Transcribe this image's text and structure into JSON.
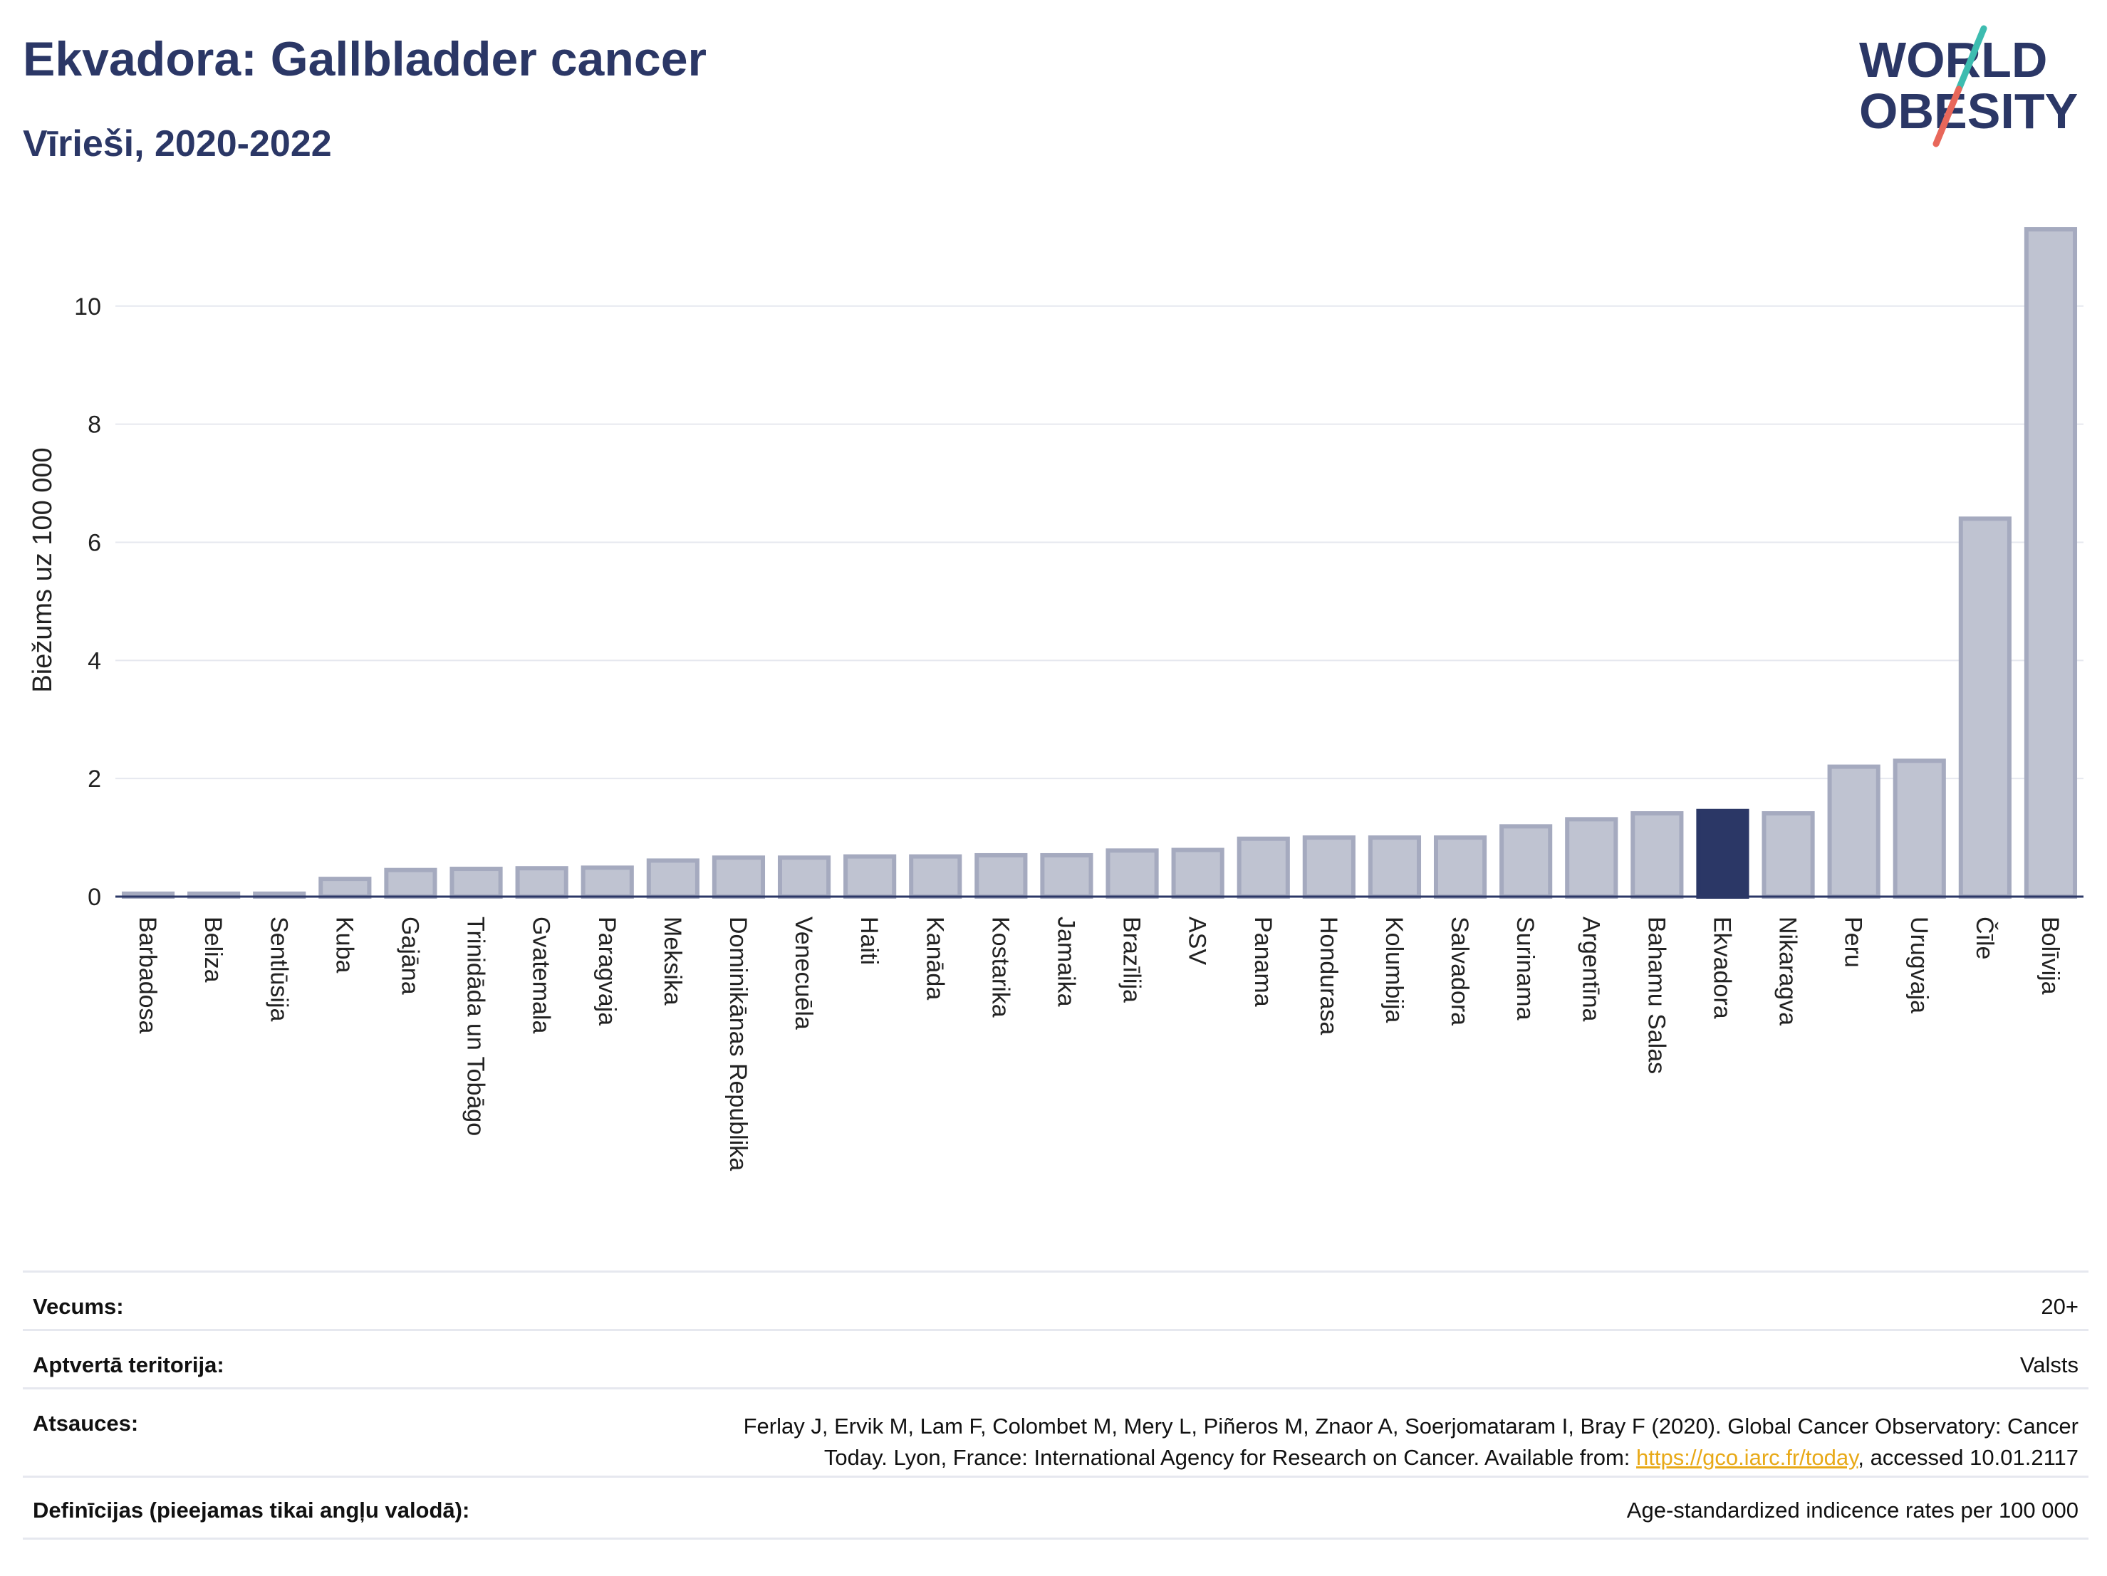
{
  "header": {
    "title": "Ekvadora: Gallbladder cancer",
    "subtitle": "Vīrieši, 2020-2022"
  },
  "logo": {
    "line1": "WORLD",
    "line2": "OBESITY",
    "icon": "world-obesity-logo-icon",
    "colors": {
      "text": "#2b3766",
      "slash_top": "#3dbcb0",
      "slash_bottom": "#e8675a"
    }
  },
  "chart_data": {
    "type": "bar",
    "ylabel": "Biežums uz 100 000",
    "xlabel": "",
    "ylim": [
      0,
      11.3
    ],
    "yticks": [
      0,
      2,
      4,
      6,
      8,
      10
    ],
    "grid": true,
    "highlight": "Ekvadora",
    "colors": {
      "bar": "#bfc3d1",
      "bar_edge": "#a5aabf",
      "highlight": "#2b3766",
      "axis": "#2b3766",
      "grid": "#e6e8ef"
    },
    "categories": [
      "Barbadosa",
      "Beliza",
      "Sentlūsija",
      "Kuba",
      "Gajāna",
      "Trinidāda un Tobāgo",
      "Gvatemala",
      "Paragvaja",
      "Meksika",
      "Dominikānas Republika",
      "Venecuēla",
      "Haiti",
      "Kanāda",
      "Kostarika",
      "Jamaika",
      "Brazīlija",
      "ASV",
      "Panama",
      "Hondurasa",
      "Kolumbija",
      "Salvadora",
      "Surinama",
      "Argentīna",
      "Bahamu Salas",
      "Ekvadora",
      "Nikaragva",
      "Peru",
      "Urugvaja",
      "Čīle",
      "Bolīvija"
    ],
    "values": [
      0.05,
      0.05,
      0.05,
      0.3,
      0.45,
      0.47,
      0.48,
      0.49,
      0.61,
      0.66,
      0.66,
      0.68,
      0.68,
      0.7,
      0.7,
      0.78,
      0.79,
      0.98,
      1.0,
      1.0,
      1.0,
      1.19,
      1.31,
      1.41,
      1.45,
      1.41,
      2.2,
      2.3,
      6.4,
      11.3
    ]
  },
  "info": {
    "rows": [
      {
        "key": "Vecums:",
        "value": "20+"
      },
      {
        "key": "Aptvertā teritorija:",
        "value": "Valsts"
      },
      {
        "key": "Atsauces:",
        "value_line1": "Ferlay J, Ervik M, Lam F, Colombet M, Mery L, Piñeros M, Znaor A, Soerjomataram I, Bray F (2020). Global Cancer Observatory: Cancer",
        "value_line2_pre": "Today. Lyon, France: International Agency for Research on Cancer. Available from: ",
        "link": "https://gco.iarc.fr/today",
        "value_line2_post": ", accessed 10.01.2117"
      },
      {
        "key": "Definīcijas (pieejamas tikai angļu valodā):",
        "value": "Age-standardized indicence rates per 100 000"
      }
    ]
  }
}
